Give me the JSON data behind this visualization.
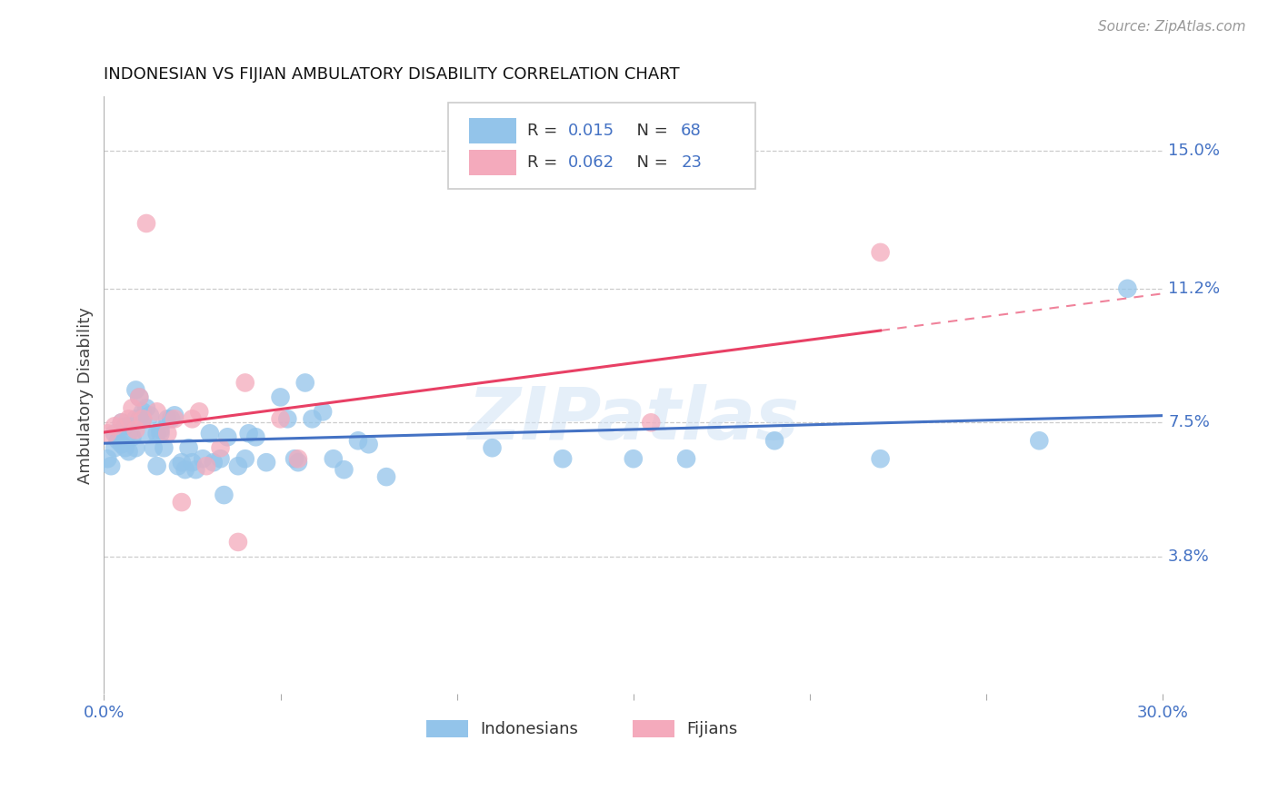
{
  "title": "INDONESIAN VS FIJIAN AMBULATORY DISABILITY CORRELATION CHART",
  "source": "Source: ZipAtlas.com",
  "ylabel": "Ambulatory Disability",
  "xlim": [
    0.0,
    0.3
  ],
  "ylim": [
    0.0,
    0.165
  ],
  "indonesian_color": "#93C4EA",
  "fijian_color": "#F4AABC",
  "indonesian_line_color": "#4472C4",
  "fijian_line_color": "#E84065",
  "indonesian_R": "0.015",
  "indonesian_N": "68",
  "fijian_R": "0.062",
  "fijian_N": "23",
  "watermark": "ZIPatlas",
  "ytick_vals": [
    0.038,
    0.075,
    0.112,
    0.15
  ],
  "ytick_labels": [
    "3.8%",
    "7.5%",
    "11.2%",
    "15.0%"
  ],
  "indonesian_x": [
    0.001,
    0.002,
    0.003,
    0.003,
    0.004,
    0.005,
    0.005,
    0.006,
    0.006,
    0.007,
    0.007,
    0.008,
    0.009,
    0.009,
    0.009,
    0.01,
    0.01,
    0.011,
    0.011,
    0.012,
    0.012,
    0.013,
    0.014,
    0.015,
    0.015,
    0.016,
    0.016,
    0.017,
    0.018,
    0.019,
    0.02,
    0.021,
    0.022,
    0.023,
    0.024,
    0.025,
    0.026,
    0.028,
    0.03,
    0.031,
    0.033,
    0.034,
    0.035,
    0.038,
    0.04,
    0.041,
    0.043,
    0.046,
    0.05,
    0.052,
    0.054,
    0.055,
    0.057,
    0.059,
    0.062,
    0.065,
    0.068,
    0.072,
    0.075,
    0.08,
    0.11,
    0.13,
    0.15,
    0.165,
    0.19,
    0.22,
    0.265,
    0.29
  ],
  "indonesian_y": [
    0.065,
    0.063,
    0.068,
    0.072,
    0.07,
    0.075,
    0.069,
    0.074,
    0.068,
    0.072,
    0.067,
    0.071,
    0.076,
    0.068,
    0.084,
    0.082,
    0.076,
    0.078,
    0.076,
    0.079,
    0.072,
    0.077,
    0.068,
    0.072,
    0.063,
    0.072,
    0.073,
    0.068,
    0.076,
    0.076,
    0.077,
    0.063,
    0.064,
    0.062,
    0.068,
    0.064,
    0.062,
    0.065,
    0.072,
    0.064,
    0.065,
    0.055,
    0.071,
    0.063,
    0.065,
    0.072,
    0.071,
    0.064,
    0.082,
    0.076,
    0.065,
    0.064,
    0.086,
    0.076,
    0.078,
    0.065,
    0.062,
    0.07,
    0.069,
    0.06,
    0.068,
    0.065,
    0.065,
    0.065,
    0.07,
    0.065,
    0.07,
    0.112
  ],
  "fijian_x": [
    0.001,
    0.003,
    0.005,
    0.007,
    0.008,
    0.009,
    0.01,
    0.011,
    0.012,
    0.015,
    0.018,
    0.02,
    0.022,
    0.025,
    0.027,
    0.029,
    0.033,
    0.038,
    0.04,
    0.05,
    0.055,
    0.155,
    0.22
  ],
  "fijian_y": [
    0.072,
    0.074,
    0.075,
    0.076,
    0.079,
    0.073,
    0.082,
    0.076,
    0.13,
    0.078,
    0.072,
    0.076,
    0.053,
    0.076,
    0.078,
    0.063,
    0.068,
    0.042,
    0.086,
    0.076,
    0.065,
    0.075,
    0.122
  ]
}
